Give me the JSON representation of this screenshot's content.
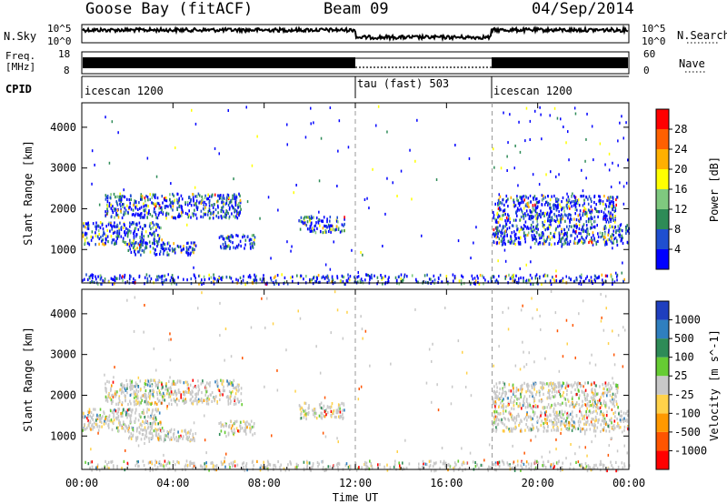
{
  "header": {
    "station": "Goose Bay (fitACF)",
    "beam": "Beam 09",
    "date": "04/Sep/2014"
  },
  "side_labels": {
    "nsky": "N.Sky",
    "freq_line1": "Freq.",
    "freq_line2": "[MHz]",
    "cpid": "CPID",
    "nsearch": "N.Search",
    "nave": "Nave"
  },
  "panel_ticks": {
    "nsky_left_top": "10^5",
    "nsky_left_bottom": "10^0",
    "nsky_right_top": "10^5",
    "nsky_right_bottom": "10^0",
    "freq_left_top": "18",
    "freq_left_bottom": "8",
    "nave_right_top": "60",
    "nave_right_bottom": "0"
  },
  "cpid_segments": [
    {
      "label": "icescan 1200",
      "start_hour": 0
    },
    {
      "label": "tau (fast) 503",
      "start_hour": 12
    },
    {
      "label": "icescan 1200",
      "start_hour": 18
    }
  ],
  "chart_data": [
    {
      "type": "scatter",
      "panel": "power",
      "ylabel": "Slant Range [km]",
      "xlabel": "Time UT",
      "x_ticks": [
        "00:00",
        "04:00",
        "08:00",
        "12:00",
        "16:00",
        "20:00",
        "00:00"
      ],
      "x_range_hours": [
        0,
        24
      ],
      "y_ticks": [
        1000,
        2000,
        3000,
        4000
      ],
      "ylim": [
        180,
        4600
      ],
      "colorbar": {
        "label": "Power [dB]",
        "ticks": [
          4,
          8,
          12,
          16,
          20,
          24,
          28
        ],
        "colors": [
          "#0000ff",
          "#1f4fd0",
          "#2e8b57",
          "#7fc97f",
          "#ffff00",
          "#ffb000",
          "#ff6000",
          "#ff0000"
        ]
      },
      "echo_regions": [
        {
          "name": "band ~1200-1600 km 00-03 UT",
          "t0": 0.0,
          "t1": 3.5,
          "r0": 1150,
          "r1": 1700
        },
        {
          "name": "arc 1800-2400 km 01-07 UT",
          "t0": 1.0,
          "t1": 7.0,
          "r0": 1800,
          "r1": 2400
        },
        {
          "name": "band ~1000-1200 km 02-05 UT",
          "t0": 2.0,
          "t1": 5.0,
          "r0": 900,
          "r1": 1200
        },
        {
          "name": "band ~1100-1400 km 06-07.5 UT",
          "t0": 6.0,
          "t1": 7.6,
          "r0": 1050,
          "r1": 1400
        },
        {
          "name": "band ~1500-1800 km 09-11.5 UT",
          "t0": 9.5,
          "t1": 11.5,
          "r0": 1450,
          "r1": 1850
        },
        {
          "name": "band ~1200-1600 km 18-24 UT",
          "t0": 18.0,
          "t1": 24.0,
          "r0": 1150,
          "r1": 1650
        },
        {
          "name": "band ~1700-2300 km 18-24 UT",
          "t0": 18.0,
          "t1": 23.5,
          "r0": 1700,
          "r1": 2350
        },
        {
          "name": "near range 180-400 km",
          "t0": 0.0,
          "t1": 24.0,
          "r0": 180,
          "r1": 420
        }
      ]
    },
    {
      "type": "scatter",
      "panel": "velocity",
      "ylabel": "Slant Range [km]",
      "xlabel": "Time UT",
      "x_ticks": [
        "00:00",
        "04:00",
        "08:00",
        "12:00",
        "16:00",
        "20:00",
        "00:00"
      ],
      "x_range_hours": [
        0,
        24
      ],
      "y_ticks": [
        1000,
        2000,
        3000,
        4000
      ],
      "ylim": [
        180,
        4600
      ],
      "colorbar": {
        "label": "Velocity [m s^-1]",
        "ticks": [
          1000,
          500,
          100,
          25,
          -25,
          -100,
          -500,
          -1000
        ],
        "colors": [
          "#1f3fbf",
          "#2f7fbf",
          "#2e8b57",
          "#66cc33",
          "#c8c8c8",
          "#ffd24a",
          "#ff9900",
          "#ff5500",
          "#ff0000"
        ]
      },
      "echo_regions": [
        {
          "name": "band ~1200-1600 km 00-03 UT",
          "t0": 0.0,
          "t1": 3.5,
          "r0": 1150,
          "r1": 1700
        },
        {
          "name": "arc 1800-2400 km 01-07 UT",
          "t0": 1.0,
          "t1": 7.0,
          "r0": 1800,
          "r1": 2400
        },
        {
          "name": "band ~1000-1200 km 02-05 UT",
          "t0": 2.0,
          "t1": 5.0,
          "r0": 900,
          "r1": 1200
        },
        {
          "name": "band ~1100-1400 km 06-07.5 UT",
          "t0": 6.0,
          "t1": 7.6,
          "r0": 1050,
          "r1": 1400
        },
        {
          "name": "band ~1500-1800 km 09-11.5 UT",
          "t0": 9.5,
          "t1": 11.5,
          "r0": 1450,
          "r1": 1850
        },
        {
          "name": "band ~1200-1600 km 18-24 UT",
          "t0": 18.0,
          "t1": 24.0,
          "r0": 1150,
          "r1": 1650
        },
        {
          "name": "band ~1700-2300 km 18-24 UT",
          "t0": 18.0,
          "t1": 23.5,
          "r0": 1700,
          "r1": 2350
        },
        {
          "name": "near range 180-400 km",
          "t0": 0.0,
          "t1": 24.0,
          "r0": 180,
          "r1": 420
        }
      ]
    }
  ]
}
